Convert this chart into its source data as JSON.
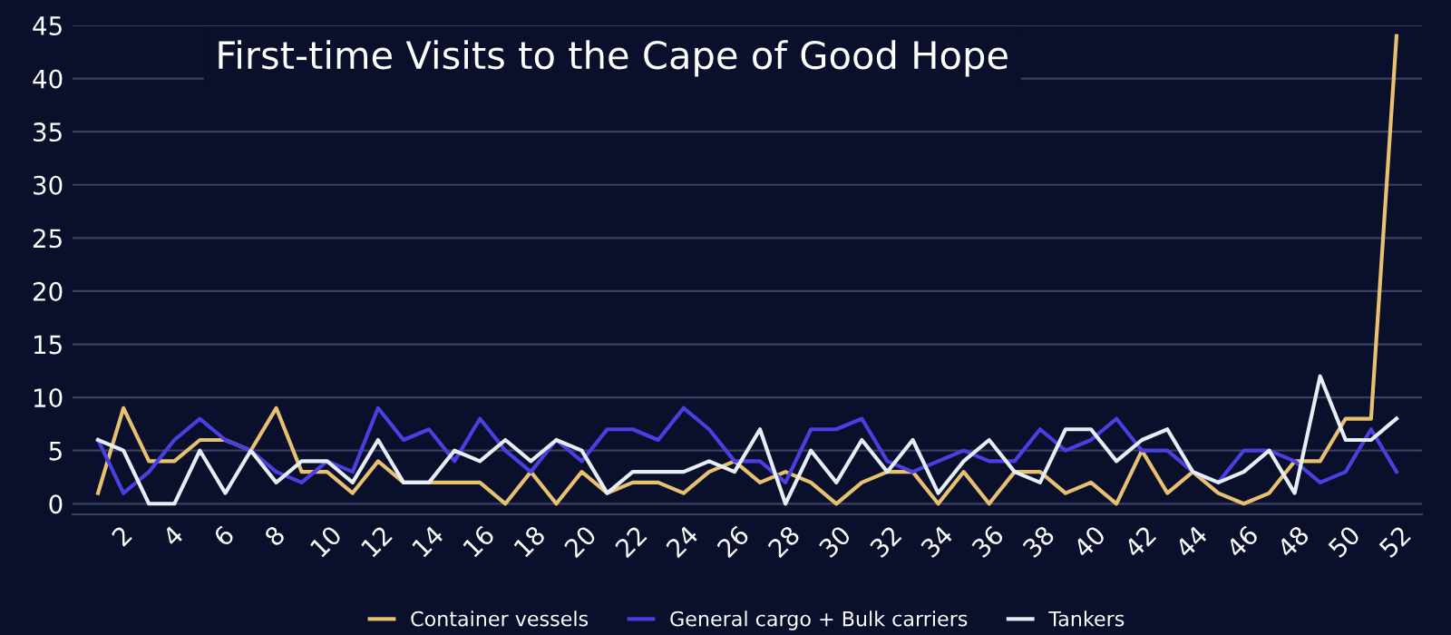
{
  "chart_data": {
    "type": "line",
    "title": "First-time Visits to the Cape of Good Hope",
    "x": [
      1,
      2,
      3,
      4,
      5,
      6,
      7,
      8,
      9,
      10,
      11,
      12,
      13,
      14,
      15,
      16,
      17,
      18,
      19,
      20,
      21,
      22,
      23,
      24,
      25,
      26,
      27,
      28,
      29,
      30,
      31,
      32,
      33,
      34,
      35,
      36,
      37,
      38,
      39,
      40,
      41,
      42,
      43,
      44,
      45,
      46,
      47,
      48,
      49,
      50,
      51,
      52
    ],
    "series": [
      {
        "name": "Container vessels",
        "color": "#e8c170",
        "values": [
          1,
          9,
          4,
          4,
          6,
          6,
          5,
          9,
          3,
          3,
          1,
          4,
          2,
          2,
          2,
          2,
          0,
          3,
          0,
          3,
          1,
          2,
          2,
          1,
          3,
          4,
          2,
          3,
          2,
          0,
          2,
          3,
          3,
          0,
          3,
          0,
          3,
          3,
          1,
          2,
          0,
          5,
          1,
          3,
          1,
          0,
          1,
          4,
          4,
          8,
          8,
          44
        ]
      },
      {
        "name": "General cargo + Bulk carriers",
        "color": "#4a3fe0",
        "values": [
          6,
          1,
          3,
          6,
          8,
          6,
          5,
          3,
          2,
          4,
          3,
          9,
          6,
          7,
          4,
          8,
          5,
          3,
          6,
          4,
          7,
          7,
          6,
          9,
          7,
          4,
          4,
          2,
          7,
          7,
          8,
          4,
          3,
          4,
          5,
          4,
          4,
          7,
          5,
          6,
          8,
          5,
          5,
          3,
          2,
          5,
          5,
          4,
          2,
          3,
          7,
          3
        ]
      },
      {
        "name": "Tankers",
        "color": "#e6eef8",
        "values": [
          6,
          5,
          0,
          0,
          5,
          1,
          5,
          2,
          4,
          4,
          2,
          6,
          2,
          2,
          5,
          4,
          6,
          4,
          6,
          5,
          1,
          3,
          3,
          3,
          4,
          3,
          7,
          0,
          5,
          2,
          6,
          3,
          6,
          1,
          4,
          6,
          3,
          2,
          7,
          7,
          4,
          6,
          7,
          3,
          2,
          3,
          5,
          1,
          12,
          6,
          6,
          8
        ]
      }
    ],
    "xlim": [
      0,
      53
    ],
    "xticks": [
      2,
      4,
      6,
      8,
      10,
      12,
      14,
      16,
      18,
      20,
      22,
      24,
      26,
      28,
      30,
      32,
      34,
      36,
      38,
      40,
      42,
      44,
      46,
      48,
      50,
      52
    ],
    "ylim": [
      -1,
      45
    ],
    "yticks": [
      0,
      5,
      10,
      15,
      20,
      25,
      30,
      35,
      40,
      45
    ],
    "grid": "y",
    "legend": "bottom",
    "marker": "none",
    "line_style": "solid"
  }
}
